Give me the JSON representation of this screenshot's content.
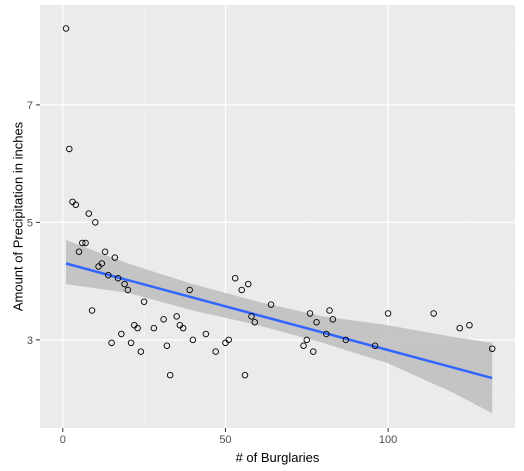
{
  "chart_data": {
    "type": "scatter",
    "title": "",
    "xlabel": "# of Burglaries",
    "ylabel": "Amount of Precipitation in inches",
    "xlim": [
      -7,
      139
    ],
    "ylim": [
      1.5,
      8.7
    ],
    "x_ticks": [
      0,
      50,
      100
    ],
    "x_tick_labels": [
      "0",
      "50",
      "100"
    ],
    "y_ticks": [
      3,
      5,
      7
    ],
    "y_tick_labels": [
      "3",
      "5",
      "7"
    ],
    "grid": true,
    "legend": "none",
    "colors": {
      "panel_background": "#ebebeb",
      "grid_major": "#ffffff",
      "grid_minor": "#f5f5f5",
      "point_stroke": "#000000",
      "fit_line": "#3366ff",
      "confidence_band": "#bdbdbd"
    },
    "points": [
      {
        "x": 1,
        "y": 8.3
      },
      {
        "x": 2,
        "y": 6.25
      },
      {
        "x": 3,
        "y": 5.35
      },
      {
        "x": 4,
        "y": 5.3
      },
      {
        "x": 5,
        "y": 4.5
      },
      {
        "x": 6,
        "y": 4.65
      },
      {
        "x": 7,
        "y": 4.65
      },
      {
        "x": 8,
        "y": 5.15
      },
      {
        "x": 9,
        "y": 3.5
      },
      {
        "x": 10,
        "y": 5.0
      },
      {
        "x": 11,
        "y": 4.25
      },
      {
        "x": 12,
        "y": 4.3
      },
      {
        "x": 13,
        "y": 4.5
      },
      {
        "x": 14,
        "y": 4.1
      },
      {
        "x": 15,
        "y": 2.95
      },
      {
        "x": 16,
        "y": 4.4
      },
      {
        "x": 17,
        "y": 4.05
      },
      {
        "x": 18,
        "y": 3.1
      },
      {
        "x": 19,
        "y": 3.95
      },
      {
        "x": 20,
        "y": 3.85
      },
      {
        "x": 21,
        "y": 2.95
      },
      {
        "x": 22,
        "y": 3.25
      },
      {
        "x": 23,
        "y": 3.2
      },
      {
        "x": 24,
        "y": 2.8
      },
      {
        "x": 25,
        "y": 3.65
      },
      {
        "x": 28,
        "y": 3.2
      },
      {
        "x": 31,
        "y": 3.35
      },
      {
        "x": 32,
        "y": 2.9
      },
      {
        "x": 33,
        "y": 2.4
      },
      {
        "x": 35,
        "y": 3.4
      },
      {
        "x": 36,
        "y": 3.25
      },
      {
        "x": 37,
        "y": 3.2
      },
      {
        "x": 39,
        "y": 3.85
      },
      {
        "x": 40,
        "y": 3.0
      },
      {
        "x": 44,
        "y": 3.1
      },
      {
        "x": 47,
        "y": 2.8
      },
      {
        "x": 50,
        "y": 2.95
      },
      {
        "x": 51,
        "y": 3.0
      },
      {
        "x": 53,
        "y": 4.05
      },
      {
        "x": 55,
        "y": 3.85
      },
      {
        "x": 56,
        "y": 2.4
      },
      {
        "x": 57,
        "y": 3.95
      },
      {
        "x": 58,
        "y": 3.4
      },
      {
        "x": 59,
        "y": 3.3
      },
      {
        "x": 64,
        "y": 3.6
      },
      {
        "x": 74,
        "y": 2.9
      },
      {
        "x": 75,
        "y": 3.0
      },
      {
        "x": 76,
        "y": 3.45
      },
      {
        "x": 77,
        "y": 2.8
      },
      {
        "x": 78,
        "y": 3.3
      },
      {
        "x": 81,
        "y": 3.1
      },
      {
        "x": 82,
        "y": 3.5
      },
      {
        "x": 83,
        "y": 3.35
      },
      {
        "x": 87,
        "y": 3.0
      },
      {
        "x": 96,
        "y": 2.9
      },
      {
        "x": 100,
        "y": 3.45
      },
      {
        "x": 114,
        "y": 3.45
      },
      {
        "x": 122,
        "y": 3.2
      },
      {
        "x": 125,
        "y": 3.25
      },
      {
        "x": 132,
        "y": 2.85
      }
    ],
    "fit_line": {
      "x": [
        1,
        132
      ],
      "y": [
        4.3,
        2.35
      ]
    },
    "confidence_band": {
      "x": [
        1,
        20,
        40,
        60,
        80,
        100,
        120,
        132
      ],
      "lower": [
        3.95,
        3.8,
        3.5,
        3.25,
        2.95,
        2.6,
        2.1,
        1.75
      ],
      "upper": [
        4.7,
        4.3,
        3.95,
        3.65,
        3.4,
        3.25,
        3.05,
        2.95
      ]
    }
  }
}
